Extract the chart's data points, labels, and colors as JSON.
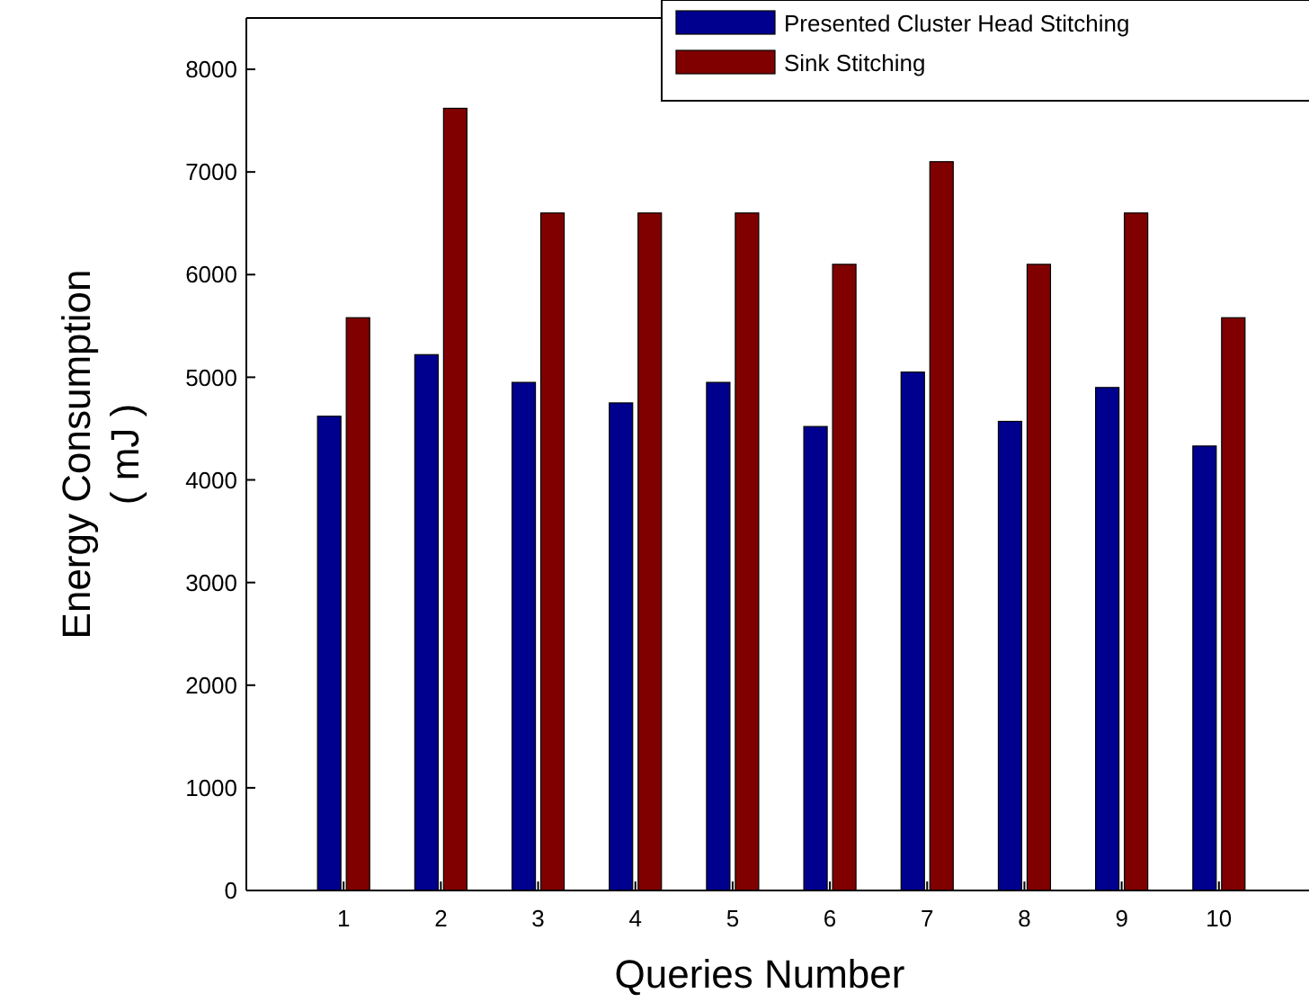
{
  "chart_data": {
    "type": "bar",
    "xlabel": "Queries Number",
    "ylabel": "Energy Consumption\n( mJ )",
    "categories": [
      "1",
      "2",
      "3",
      "4",
      "5",
      "6",
      "7",
      "8",
      "9",
      "10"
    ],
    "series": [
      {
        "name": "Presented Cluster Head Stitching",
        "color": "#00008f",
        "values": [
          4620,
          5220,
          4950,
          4750,
          4950,
          4520,
          5050,
          4570,
          4900,
          4330
        ]
      },
      {
        "name": "Sink Stitching",
        "color": "#800000",
        "values": [
          5580,
          7620,
          6600,
          6600,
          6600,
          6100,
          7100,
          6100,
          6600,
          5580
        ]
      }
    ],
    "ylim": [
      0,
      8500
    ],
    "yticks": [
      0,
      1000,
      2000,
      3000,
      4000,
      5000,
      6000,
      7000,
      8000
    ],
    "legend": "top right"
  }
}
